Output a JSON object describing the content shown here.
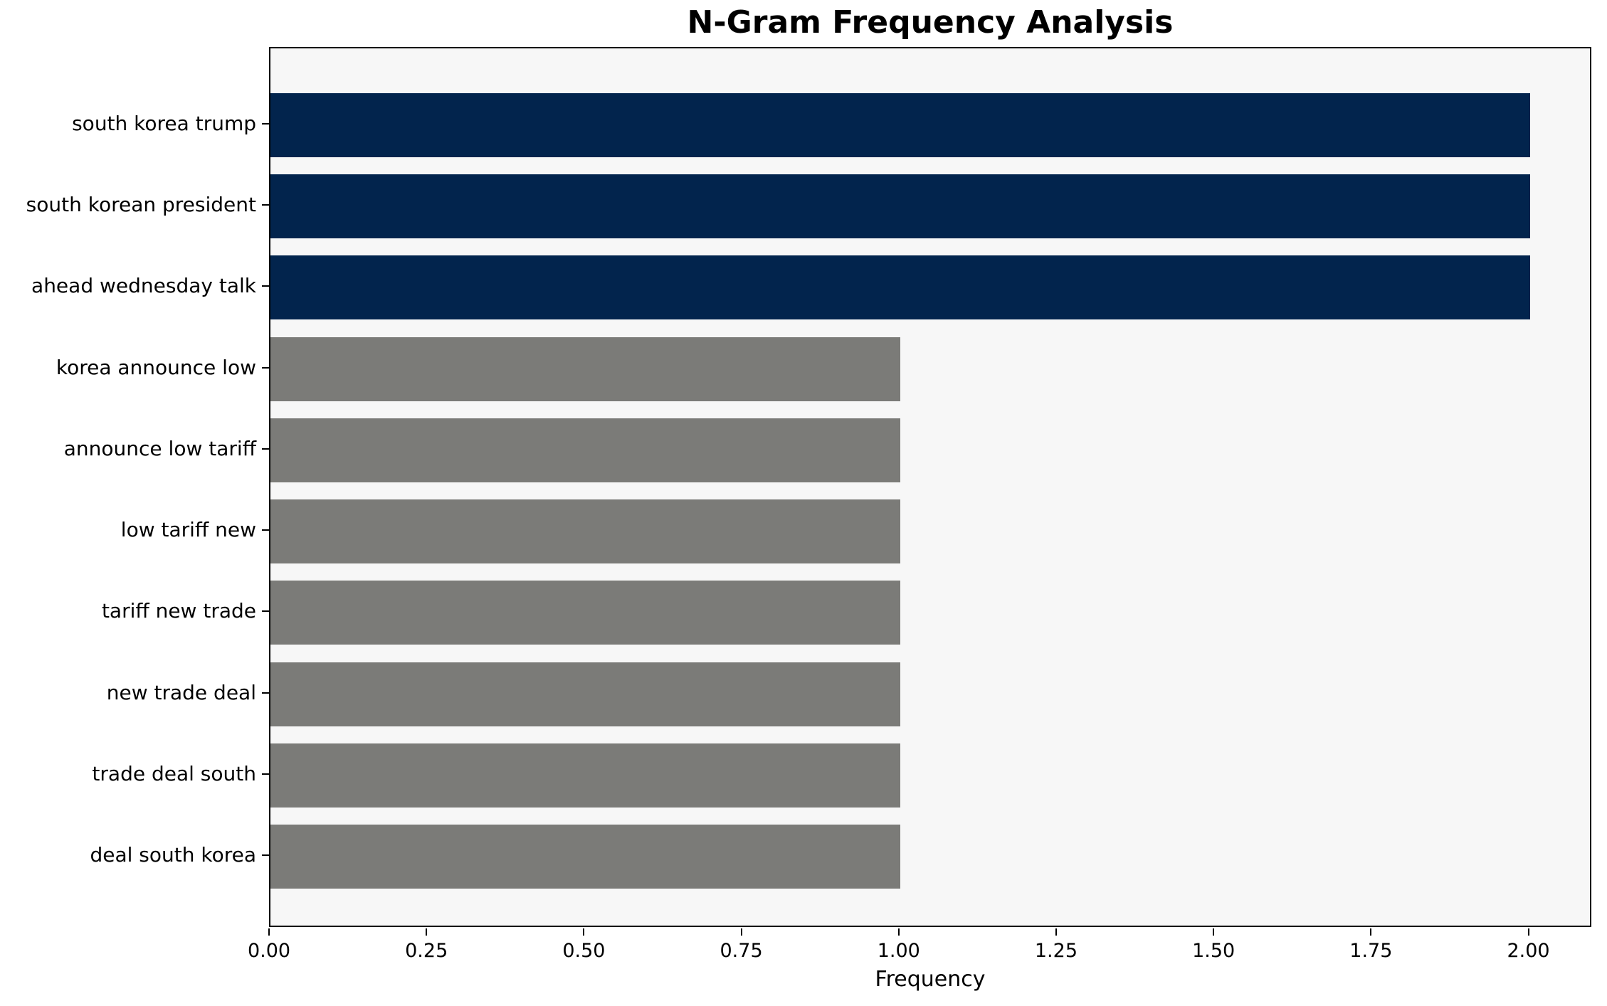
{
  "chart_data": {
    "type": "bar",
    "orientation": "horizontal",
    "title": "N-Gram Frequency Analysis",
    "xlabel": "Frequency",
    "ylabel": "",
    "categories": [
      "south korea trump",
      "south korean president",
      "ahead wednesday talk",
      "korea announce low",
      "announce low tariff",
      "low tariff new",
      "tariff new trade",
      "new trade deal",
      "trade deal south",
      "deal south korea"
    ],
    "values": [
      2,
      2,
      2,
      1,
      1,
      1,
      1,
      1,
      1,
      1
    ],
    "bar_colors": [
      "#02244d",
      "#02244d",
      "#02244d",
      "#7b7b78",
      "#7b7b78",
      "#7b7b78",
      "#7b7b78",
      "#7b7b78",
      "#7b7b78",
      "#7b7b78"
    ],
    "xlim": [
      0,
      2.1
    ],
    "xtick_labels": [
      "0.00",
      "0.25",
      "0.50",
      "0.75",
      "1.00",
      "1.25",
      "1.50",
      "1.75",
      "2.00"
    ],
    "xtick_values": [
      0,
      0.25,
      0.5,
      0.75,
      1.0,
      1.25,
      1.5,
      1.75,
      2.0
    ],
    "grid": false,
    "legend": null,
    "colors": {
      "highlight": "#02244d",
      "base": "#7b7b78",
      "plot_background": "#f7f7f7",
      "figure_background": "#ffffff",
      "axis": "#000000"
    }
  }
}
